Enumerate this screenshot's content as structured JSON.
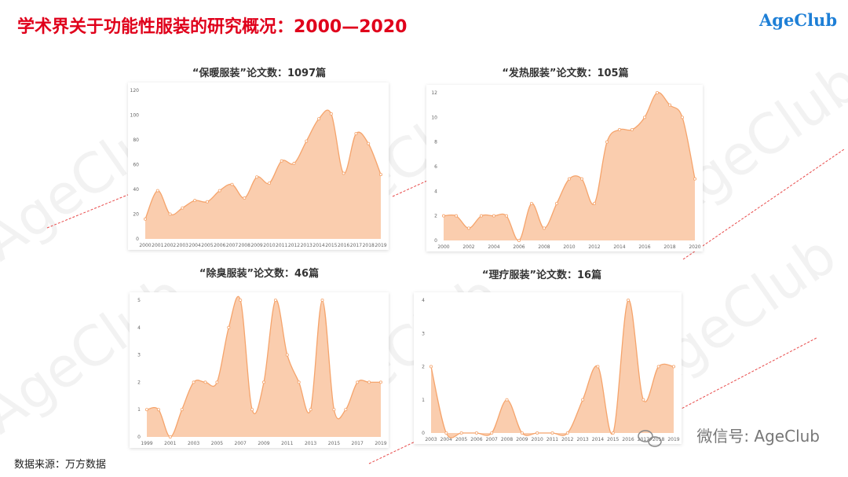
{
  "header": {
    "title": "学术界关于功能性服装的研究概况：2000—2020",
    "logo": "AgeClub"
  },
  "footer": {
    "source": "数据来源：万方数据",
    "wechat": "微信号: AgeClub",
    "watermark": "AgeClub"
  },
  "chart_data": [
    {
      "type": "area",
      "title": "“保暖服装”论文数：1097篇",
      "color": "#f5a46c",
      "x": [
        2000,
        2001,
        2002,
        2003,
        2004,
        2005,
        2006,
        2007,
        2008,
        2009,
        2010,
        2011,
        2012,
        2013,
        2014,
        2015,
        2016,
        2017,
        2018,
        2019
      ],
      "values": [
        16,
        39,
        20,
        25,
        31,
        30,
        39,
        44,
        33,
        50,
        45,
        63,
        61,
        79,
        97,
        101,
        53,
        85,
        77,
        52
      ],
      "xlim": [
        2000,
        2019
      ],
      "xticks": [
        2000,
        2001,
        2002,
        2003,
        2004,
        2005,
        2006,
        2007,
        2008,
        2009,
        2010,
        2011,
        2012,
        2013,
        2014,
        2015,
        2016,
        2017,
        2018,
        2019
      ],
      "ylim": [
        0,
        120
      ],
      "yticks": [
        0,
        20,
        40,
        60,
        80,
        100,
        120
      ]
    },
    {
      "type": "area",
      "title": "“发热服装”论文数：105篇",
      "color": "#f5a46c",
      "x": [
        2000,
        2001,
        2002,
        2003,
        2004,
        2005,
        2006,
        2007,
        2008,
        2009,
        2010,
        2011,
        2012,
        2013,
        2014,
        2015,
        2016,
        2017,
        2018,
        2019,
        2020
      ],
      "values": [
        2,
        2,
        1,
        2,
        2,
        2,
        0,
        3,
        1,
        3,
        5,
        5,
        3,
        8,
        9,
        9,
        10,
        12,
        11,
        10,
        5
      ],
      "xlim": [
        2000,
        2020
      ],
      "xticks": [
        2000,
        2002,
        2004,
        2006,
        2008,
        2010,
        2012,
        2014,
        2016,
        2018,
        2020
      ],
      "ylim": [
        0,
        12
      ],
      "yticks": [
        0,
        2,
        4,
        6,
        8,
        10,
        12
      ]
    },
    {
      "type": "area",
      "title": "“除臭服装”论文数：46篇",
      "color": "#f5a46c",
      "x": [
        1999,
        2000,
        2001,
        2002,
        2003,
        2004,
        2005,
        2006,
        2007,
        2008,
        2009,
        2010,
        2011,
        2012,
        2013,
        2014,
        2015,
        2016,
        2017,
        2018,
        2019
      ],
      "values": [
        1,
        1,
        0,
        1,
        2,
        2,
        2,
        4,
        5,
        1,
        2,
        5,
        3,
        2,
        1,
        5,
        1,
        1,
        2,
        2,
        2
      ],
      "xlim": [
        1999,
        2019
      ],
      "xticks": [
        1999,
        2001,
        2003,
        2005,
        2007,
        2009,
        2011,
        2013,
        2015,
        2017,
        2019
      ],
      "ylim": [
        0,
        5
      ],
      "yticks": [
        0,
        1,
        2,
        3,
        4,
        5
      ]
    },
    {
      "type": "area",
      "title": "“理疗服装”论文数：16篇",
      "color": "#f5a46c",
      "x": [
        2003,
        2004,
        2005,
        2006,
        2007,
        2008,
        2009,
        2010,
        2011,
        2012,
        2013,
        2014,
        2015,
        2016,
        2017,
        2018,
        2019
      ],
      "values": [
        2,
        0,
        0,
        0,
        0,
        1,
        0,
        0,
        0,
        0,
        1,
        2,
        0,
        4,
        1,
        2,
        2
      ],
      "xlim": [
        2003,
        2019
      ],
      "xticks": [
        2003,
        2004,
        2005,
        2006,
        2007,
        2008,
        2009,
        2010,
        2011,
        2012,
        2013,
        2014,
        2015,
        2016,
        2017,
        2018,
        2019
      ],
      "ylim": [
        0,
        4
      ],
      "yticks": [
        0,
        1,
        2,
        3,
        4
      ]
    }
  ]
}
